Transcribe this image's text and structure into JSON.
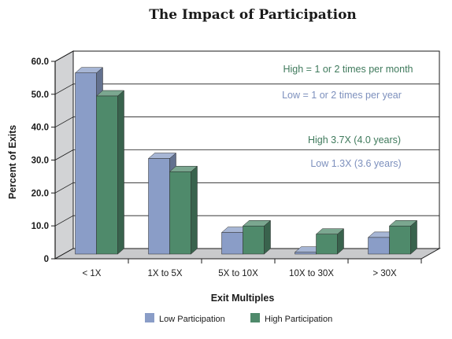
{
  "chart_data": {
    "type": "bar",
    "title": "The Impact of Participation",
    "xlabel": "Exit Multiples",
    "ylabel": "Percent of Exits",
    "ylim": [
      0,
      60
    ],
    "yticks": [
      "0",
      "10.0",
      "20.0",
      "30.0",
      "40.0",
      "50.0",
      "60.0"
    ],
    "ytick_values": [
      0,
      10,
      20,
      30,
      40,
      50,
      60
    ],
    "categories": [
      "< 1X",
      "1X to 5X",
      "5X to 10X",
      "10X to 30X",
      "> 30X"
    ],
    "series": [
      {
        "name": "Low Participation",
        "values": [
          56,
          30,
          7.5,
          1.5,
          6
        ],
        "color": "#8a9dc7"
      },
      {
        "name": "High Participation",
        "values": [
          49,
          26,
          9.5,
          7,
          9.5
        ],
        "color": "#4f8a6b"
      }
    ],
    "annotations": [
      {
        "text": "High = 1 or 2 times per month",
        "color": "#3f7a5c"
      },
      {
        "text": "Low = 1 or 2 times per year",
        "color": "#7d90bd"
      },
      {
        "text": "High 3.7X (4.0 years)",
        "color": "#3f7a5c"
      },
      {
        "text": "Low 1.3X (3.6 years)",
        "color": "#7d90bd"
      }
    ],
    "grid": true,
    "legend_position": "bottom-center"
  }
}
